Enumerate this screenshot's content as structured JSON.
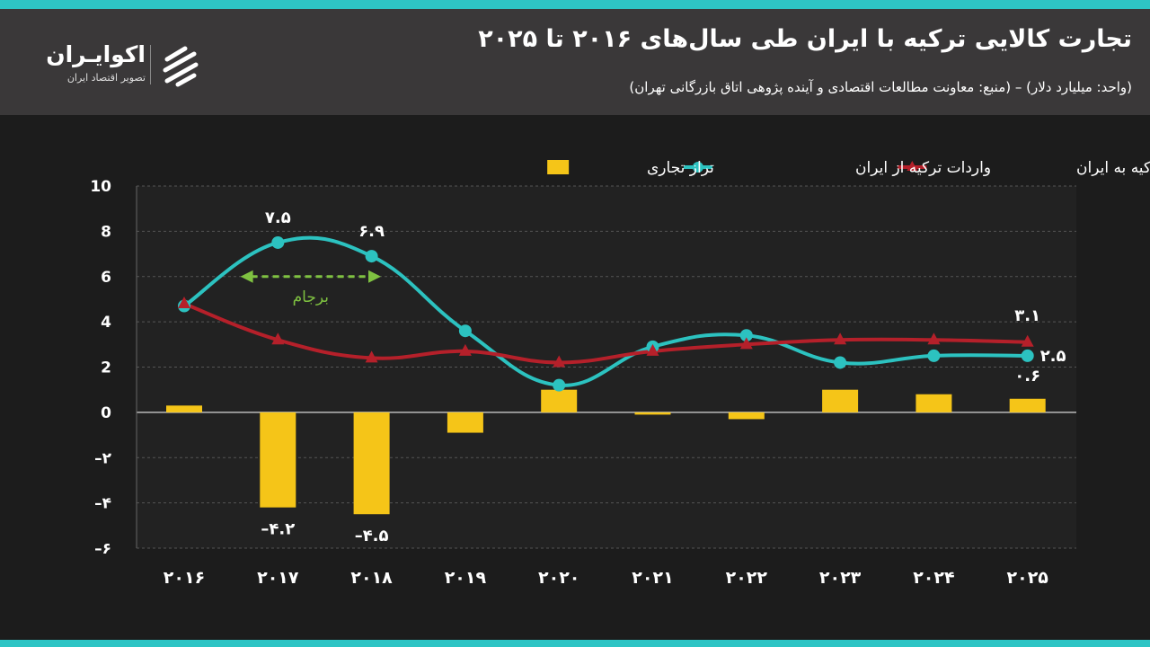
{
  "header": {
    "title": "تجارت کالایی ترکیه با ایران طی سال‌های ۲۰۱۶ تا ۲۰۲۵",
    "subtitle": "(واحد: میلیارد دلار) – (منبع: معاونت مطالعات اقتصادی و آینده پژوهی اتاق بازرگانی تهران)"
  },
  "logo": {
    "name": "اکوایـران",
    "tagline": "تصویر اقتصاد ایران",
    "icon": "ecoiran-logo-icon"
  },
  "colors": {
    "exports": "#b5202a",
    "imports": "#2cc2c0",
    "balance": "#f5c518",
    "annotation": "#7fc241",
    "accent": "#2ec4c4"
  },
  "chart_data": {
    "type": "bar+line",
    "categories": [
      "۲۰۱۶",
      "۲۰۱۷",
      "۲۰۱۸",
      "۲۰۱۹",
      "۲۰۲۰",
      "۲۰۲۱",
      "۲۰۲۲",
      "۲۰۲۳",
      "۲۰۲۴",
      "۲۰۲۵"
    ],
    "ylim": [
      -6,
      10
    ],
    "yticks": [
      10,
      8,
      6,
      4,
      2,
      0,
      -2,
      -4,
      -6
    ],
    "ytick_labels": [
      "10",
      "8",
      "6",
      "4",
      "2",
      "0",
      "–۲",
      "–۴",
      "–۶"
    ],
    "grid": true,
    "legend_position": "top",
    "series": [
      {
        "name": "صادرات ترکیه به ایران",
        "type": "line",
        "marker": "triangle",
        "values": [
          4.8,
          3.2,
          2.4,
          2.7,
          2.2,
          2.7,
          3.0,
          3.2,
          3.2,
          3.1
        ]
      },
      {
        "name": "واردات ترکیه از ایران",
        "type": "line",
        "marker": "circle",
        "values": [
          4.7,
          7.5,
          6.9,
          3.6,
          1.2,
          2.9,
          3.4,
          2.2,
          2.5,
          2.5
        ]
      },
      {
        "name": "تراز تجاری",
        "type": "bar",
        "values": [
          0.3,
          -4.2,
          -4.5,
          -0.9,
          1.0,
          -0.1,
          -0.3,
          1.0,
          0.8,
          0.6
        ]
      }
    ],
    "data_labels": [
      {
        "series": 1,
        "index": 1,
        "text": "۷.۵",
        "pos": "above"
      },
      {
        "series": 1,
        "index": 2,
        "text": "۶.۹",
        "pos": "above"
      },
      {
        "series": 0,
        "index": 9,
        "text": "۳.۱",
        "pos": "above"
      },
      {
        "series": 1,
        "index": 9,
        "text": "۲.۵",
        "pos": "right"
      },
      {
        "series": 2,
        "index": 9,
        "text": "۰.۶",
        "pos": "above"
      },
      {
        "series": 2,
        "index": 1,
        "text": "–۴.۲",
        "pos": "below"
      },
      {
        "series": 2,
        "index": 2,
        "text": "–۴.۵",
        "pos": "below"
      }
    ],
    "annotation": {
      "text": "برجام",
      "from_index": 0.6,
      "to_index": 2.1,
      "y": 6
    }
  }
}
